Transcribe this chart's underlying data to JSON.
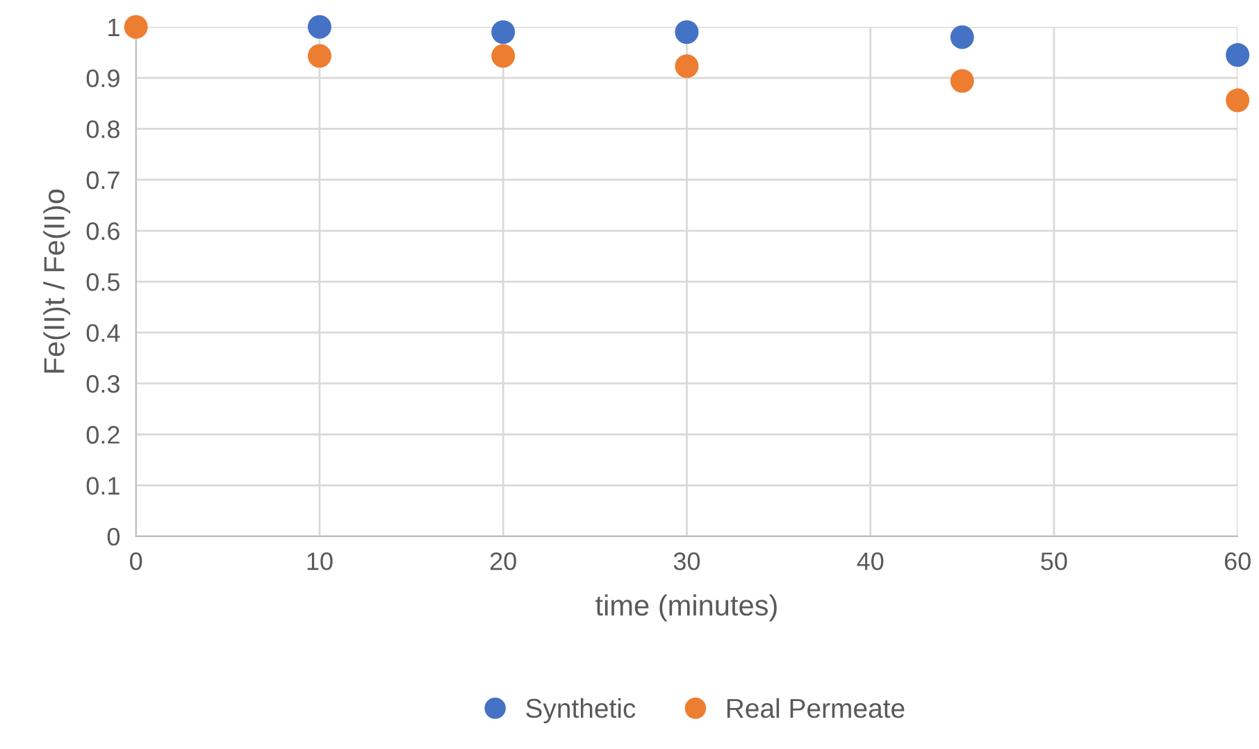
{
  "chart_data": {
    "type": "scatter",
    "xlabel": "time (minutes)",
    "ylabel": "Fe(II)t / Fe(II)o",
    "x": [
      0,
      10,
      20,
      30,
      45,
      60
    ],
    "series": [
      {
        "name": "Synthetic",
        "color": "#4472c4",
        "values": [
          null,
          1.0,
          0.99,
          0.99,
          0.98,
          0.945
        ]
      },
      {
        "name": "Real Permeate",
        "color": "#ed7d31",
        "values": [
          1.0,
          0.943,
          0.943,
          0.923,
          0.894,
          0.856
        ]
      }
    ],
    "xlim": [
      0,
      60
    ],
    "xticks": [
      0,
      10,
      20,
      30,
      40,
      50,
      60
    ],
    "ylim": [
      0,
      1
    ],
    "yticks": [
      0,
      {
        "value": 0.1,
        "label": "0.1"
      },
      {
        "value": 0.2,
        "label": "0.2"
      },
      {
        "value": 0.3,
        "label": "0.3"
      },
      {
        "value": 0.4,
        "label": "0.4"
      },
      {
        "value": 0.5,
        "label": "0.5"
      },
      {
        "value": 0.6,
        "label": "0.6"
      },
      {
        "value": 0.7,
        "label": "0.7"
      },
      {
        "value": 0.8,
        "label": "0.8"
      },
      {
        "value": 0.9,
        "label": "0.9"
      },
      1
    ],
    "grid": true,
    "legend": "bottom",
    "marker": "circle"
  }
}
